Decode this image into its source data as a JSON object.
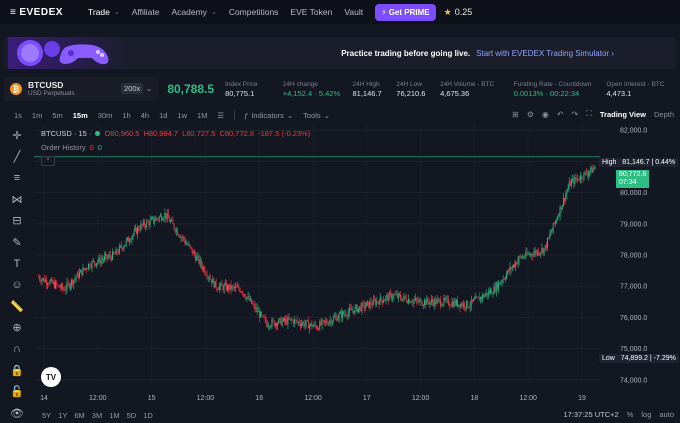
{
  "nav": {
    "logo": "EVEDEX",
    "items": [
      {
        "label": "Trade",
        "dropdown": true,
        "active": true
      },
      {
        "label": "Affiliate",
        "dropdown": false
      },
      {
        "label": "Academy",
        "dropdown": true
      },
      {
        "label": "Competitions",
        "dropdown": false
      },
      {
        "label": "EVE Token",
        "dropdown": false
      },
      {
        "label": "Vault",
        "dropdown": false
      }
    ],
    "prime_label": "Get PRIME",
    "points": "0.25"
  },
  "banner": {
    "text": "Practice trading before going live.",
    "cta": "Start with EVEDEX Trading Simulator"
  },
  "ticker": {
    "symbol": "BTCUSD",
    "subtitle": "USD Perpetuals",
    "leverage": "200x",
    "last_price": "80,788.5",
    "stats": [
      {
        "label": "Index Price",
        "value": "80,775.1",
        "color": "white"
      },
      {
        "label": "24H change",
        "value": "+4,152.4 · 5.42%",
        "color": "green"
      },
      {
        "label": "24H High",
        "value": "81,146.7",
        "color": "white"
      },
      {
        "label": "24H Low",
        "value": "76,210.6",
        "color": "white"
      },
      {
        "label": "24H Volume - BTC",
        "value": "4,675.36",
        "color": "white"
      },
      {
        "label": "Funding Rate - Countdown",
        "value": "0.0013% · 00:22:34",
        "color": "green"
      },
      {
        "label": "Open Interest - BTC",
        "value": "4,473.1",
        "color": "white"
      }
    ]
  },
  "toolbar": {
    "timeframes": [
      "1s",
      "1m",
      "5m",
      "15m",
      "30m",
      "1h",
      "4h",
      "1d",
      "1w",
      "1M"
    ],
    "active_timeframe": "15m",
    "indicators_label": "Indicators",
    "tools_label": "Tools",
    "trading_view_label": "Trading View",
    "depth_label": "Depth"
  },
  "legend": {
    "symbol": "BTCUSD · 15 ·",
    "open": "O80,960.5",
    "high": "H80,984.7",
    "low": "L80,727.5",
    "close": "C80,772.8",
    "change": "-187.5 (-0.23%)",
    "order_history_label": "Order History",
    "order_red": "0",
    "order_green": "0"
  },
  "price_tags": {
    "high_label": "High",
    "high_value": "81,146.7 | 0.44%",
    "current_price": "80,772.8",
    "countdown": "07:34",
    "low_label": "Low",
    "low_value": "74,899.2 | -7.29%"
  },
  "chart_data": {
    "type": "candlestick",
    "symbol": "BTCUSD",
    "interval": "15m",
    "y_ticks": [
      82000,
      81000,
      80000,
      79000,
      78000,
      77000,
      76000,
      75000,
      74000
    ],
    "y_tick_labels": [
      "82,000.0",
      "81,000.0",
      "80,000.0",
      "79,000.0",
      "78,000.0",
      "77,000.0",
      "76,000.0",
      "75,000.0",
      "74,000.0"
    ],
    "ylim": [
      73800,
      82200
    ],
    "x_tick_labels": [
      "14",
      "12:00",
      "15",
      "12:00",
      "16",
      "12:00",
      "17",
      "12:00",
      "18",
      "12:00",
      "19"
    ],
    "close_path_approx": [
      {
        "t": "13 22:00",
        "close": 77300
      },
      {
        "t": "14 00:00",
        "close": 76900
      },
      {
        "t": "14 06:00",
        "close": 77700
      },
      {
        "t": "14 12:00",
        "close": 78000
      },
      {
        "t": "14 18:00",
        "close": 78900
      },
      {
        "t": "15 00:00",
        "close": 79300
      },
      {
        "t": "15 06:00",
        "close": 78200
      },
      {
        "t": "15 12:00",
        "close": 77000
      },
      {
        "t": "15 18:00",
        "close": 76900
      },
      {
        "t": "16 00:00",
        "close": 75800
      },
      {
        "t": "16 06:00",
        "close": 75900
      },
      {
        "t": "16 12:00",
        "close": 75700
      },
      {
        "t": "16 18:00",
        "close": 76100
      },
      {
        "t": "17 00:00",
        "close": 76400
      },
      {
        "t": "17 06:00",
        "close": 76700
      },
      {
        "t": "17 12:00",
        "close": 76500
      },
      {
        "t": "17 18:00",
        "close": 76500
      },
      {
        "t": "18 00:00",
        "close": 76400
      },
      {
        "t": "18 06:00",
        "close": 76900
      },
      {
        "t": "18 12:00",
        "close": 77900
      },
      {
        "t": "18 15:00",
        "close": 78200
      },
      {
        "t": "18 16:00",
        "close": 80300
      },
      {
        "t": "18 18:00",
        "close": 80800
      }
    ],
    "high_line": 81146.7,
    "current_price": 80772.8
  },
  "bottom": {
    "ranges": [
      "5Y",
      "1Y",
      "6M",
      "3M",
      "1M",
      "5D",
      "1D"
    ],
    "time": "17:37:25 UTC+2",
    "pct": "%",
    "log": "log",
    "auto": "auto"
  },
  "colors": {
    "up": "#2ebd85",
    "down": "#f23645",
    "accent": "#7b4dff",
    "bg": "#131722"
  }
}
